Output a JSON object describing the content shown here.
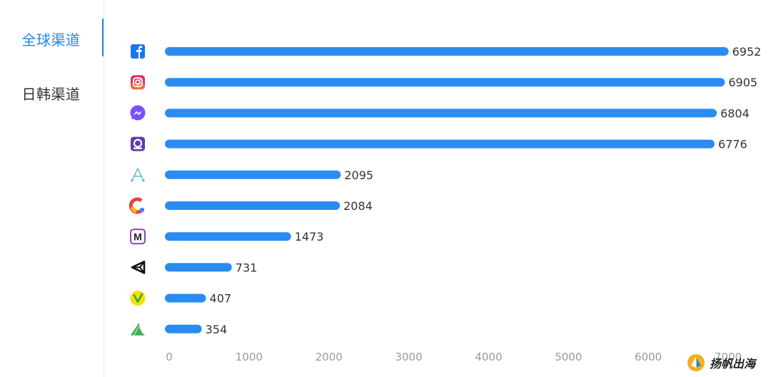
{
  "sidebar": {
    "tabs": [
      {
        "label": "全球渠道",
        "active": true
      },
      {
        "label": "日韩渠道",
        "active": false
      }
    ]
  },
  "colors": {
    "accent": "#1e88e5",
    "bar": "#2a8cf0",
    "label": "#333333",
    "tick": "#999999"
  },
  "watermark": {
    "text": "扬帆出海"
  },
  "chart_data": {
    "type": "bar",
    "orientation": "horizontal",
    "categories": [
      "facebook-icon",
      "instagram-icon",
      "messenger-icon",
      "podcast-app-icon",
      "app-store-icon",
      "google-ads-icon",
      "m-app-icon",
      "unity-icon",
      "vungle-icon",
      "green-leaf-app-icon"
    ],
    "values": [
      6952,
      6905,
      6804,
      6776,
      2095,
      2084,
      1473,
      731,
      407,
      354
    ],
    "data_labels": [
      "6952",
      "6905",
      "6804",
      "6776",
      "2095",
      "2084",
      "1473",
      "731",
      "407",
      "354"
    ],
    "xlim": [
      0,
      7000
    ],
    "xticks": [
      0,
      1000,
      2000,
      3000,
      4000,
      5000,
      6000,
      7000
    ],
    "xtick_labels": [
      "0",
      "1000",
      "2000",
      "3000",
      "4000",
      "5000",
      "6000",
      "7000"
    ],
    "grid": false,
    "legend": "none",
    "title": "",
    "xlabel": "",
    "ylabel": ""
  }
}
